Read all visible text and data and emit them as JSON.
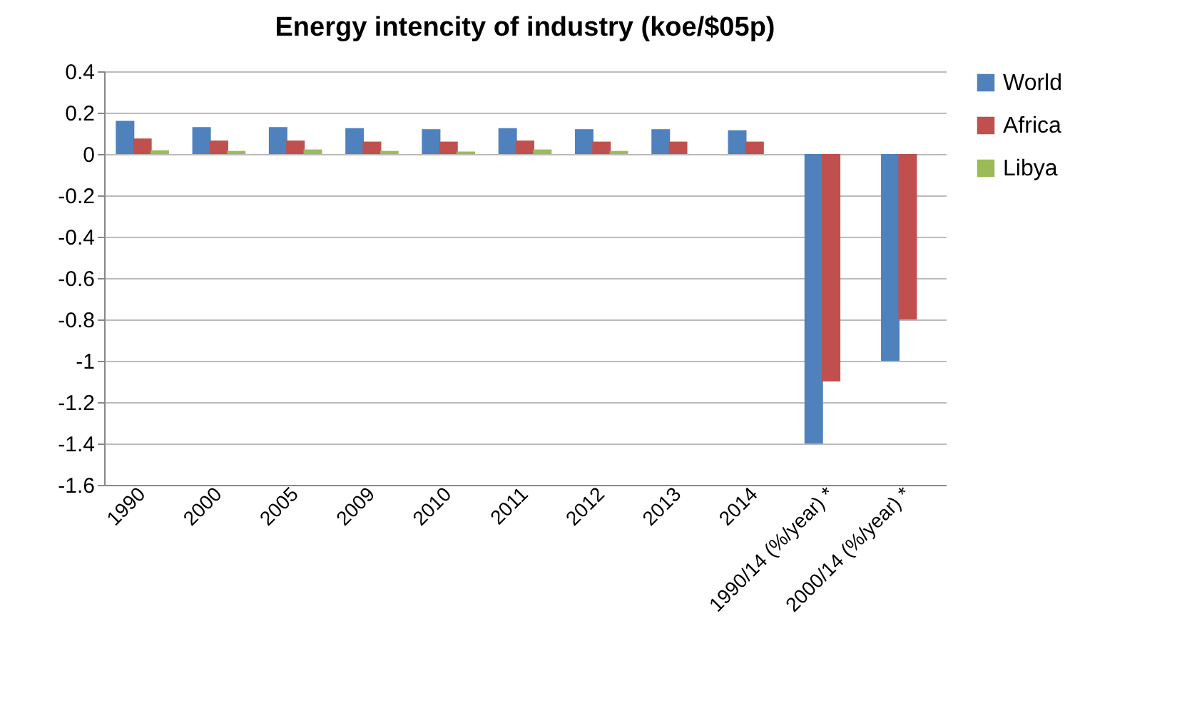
{
  "chart_data": {
    "type": "bar",
    "title": "Energy intencity of industry (koe/$05p)",
    "categories": [
      "1990",
      "2000",
      "2005",
      "2009",
      "2010",
      "2011",
      "2012",
      "2013",
      "2014",
      "1990/14 (%/year) *",
      "2000/14 (%/year) *"
    ],
    "series": [
      {
        "name": "World",
        "color": "#4f81bd",
        "values": [
          0.16,
          0.13,
          0.13,
          0.125,
          0.12,
          0.125,
          0.12,
          0.12,
          0.115,
          -1.4,
          -1.0
        ]
      },
      {
        "name": "Africa",
        "color": "#c0504d",
        "values": [
          0.075,
          0.065,
          0.065,
          0.06,
          0.06,
          0.065,
          0.06,
          0.06,
          0.06,
          -1.1,
          -0.8
        ]
      },
      {
        "name": "Libya",
        "color": "#9bbb59",
        "values": [
          0.018,
          0.015,
          0.022,
          0.015,
          0.012,
          0.022,
          0.015,
          null,
          null,
          null,
          null
        ]
      }
    ],
    "ylim": [
      -1.6,
      0.4
    ],
    "yticks": [
      0.4,
      0.2,
      0,
      -0.2,
      -0.4,
      -0.6,
      -0.8,
      -1,
      -1.2,
      -1.4,
      -1.6
    ],
    "grid": "y",
    "legend": "right"
  }
}
